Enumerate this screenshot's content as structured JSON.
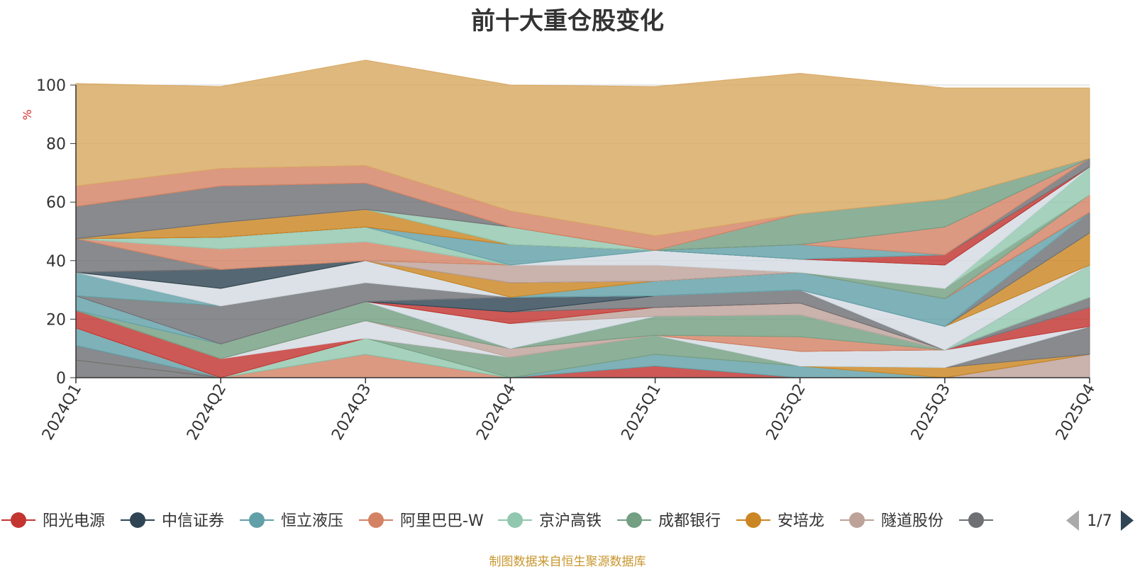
{
  "chart_data": {
    "type": "area",
    "title": "前十大重仓股变化",
    "ylabel": "%",
    "ylim": [
      0,
      100
    ],
    "yticks": [
      0,
      20,
      40,
      60,
      80,
      100
    ],
    "grid": true,
    "categories": [
      "2024Q1",
      "2024Q2",
      "2024Q3",
      "2024Q4",
      "2025Q1",
      "2025Q2",
      "2025Q3",
      "2025Q4"
    ],
    "legend": {
      "placement": "bottom",
      "items": [
        {
          "name": "阳光电源",
          "color": "#c23531"
        },
        {
          "name": "中信证券",
          "color": "#2f4554"
        },
        {
          "name": "恒立液压",
          "color": "#61a0a8"
        },
        {
          "name": "阿里巴巴-W",
          "color": "#d48265"
        },
        {
          "name": "京沪高铁",
          "color": "#91c7ae"
        },
        {
          "name": "成都银行",
          "color": "#749f83"
        },
        {
          "name": "安培龙",
          "color": "#ca8622"
        },
        {
          "name": "隧道股份",
          "color": "#bda29a"
        },
        {
          "name": "",
          "color": "#6e7074"
        }
      ],
      "page": "1/7"
    },
    "series": [
      {
        "color": "#6e7074",
        "values": [
          6,
          0,
          0,
          0,
          0,
          0,
          0,
          0
        ]
      },
      {
        "color": "#ca8622",
        "values": [
          0,
          0,
          0,
          0,
          0,
          0,
          0,
          0
        ]
      },
      {
        "color": "#6e7074",
        "values": [
          5,
          0,
          0,
          0,
          0,
          0,
          0,
          0
        ]
      },
      {
        "color": "#61a0a8",
        "values": [
          6,
          0,
          0,
          0,
          0,
          0,
          0,
          0
        ]
      },
      {
        "color": "#bda29a",
        "values": [
          0,
          0,
          0,
          0,
          0,
          0,
          0,
          8
        ]
      },
      {
        "color": "#d48265",
        "values": [
          0,
          0,
          8,
          0,
          0,
          0,
          0,
          0
        ]
      },
      {
        "color": "#c23531",
        "values": [
          0,
          0,
          0,
          0,
          4,
          0,
          0,
          0
        ]
      },
      {
        "color": "#61a0a8",
        "values": [
          0,
          0,
          0,
          0,
          4,
          4,
          0,
          0
        ]
      },
      {
        "color": "#ca8622",
        "values": [
          0,
          0,
          0,
          0,
          0,
          0,
          3.5,
          0
        ]
      },
      {
        "color": "#6e7074",
        "values": [
          0,
          0,
          0,
          0,
          0,
          0,
          0,
          9.5
        ]
      },
      {
        "color": "#91c7ae",
        "values": [
          0,
          0,
          5.5,
          0,
          0,
          0,
          0,
          0
        ]
      },
      {
        "color": "#749f83",
        "values": [
          0,
          0,
          0,
          7,
          6.5,
          0,
          0,
          0
        ]
      },
      {
        "color": "#d4dbe3",
        "values": [
          0,
          0,
          0,
          0,
          0,
          5,
          6,
          0
        ]
      },
      {
        "color": "#c23531",
        "values": [
          6,
          6.5,
          0,
          0,
          0,
          0,
          0,
          6.5
        ]
      },
      {
        "color": "#d4dbe3",
        "values": [
          0,
          0,
          6,
          0,
          0,
          0,
          0,
          0
        ]
      },
      {
        "color": "#bda29a",
        "values": [
          0,
          0,
          0,
          3,
          0,
          0,
          0,
          0
        ]
      },
      {
        "color": "#6e7074",
        "values": [
          0,
          0,
          0,
          0,
          0,
          0,
          0,
          3.5
        ]
      },
      {
        "color": "#d48265",
        "values": [
          0,
          0,
          0,
          0,
          0,
          5,
          0,
          0
        ]
      },
      {
        "color": "#749f83",
        "values": [
          0,
          5,
          6.5,
          0,
          6.5,
          7.5,
          0,
          0
        ]
      },
      {
        "color": "#61a0a8",
        "values": [
          5,
          0,
          0,
          0,
          0,
          0,
          0,
          0
        ]
      },
      {
        "color": "#d4dbe3",
        "values": [
          0,
          0,
          0,
          8.5,
          0,
          0,
          0,
          0
        ]
      },
      {
        "color": "#bda29a",
        "values": [
          0,
          0,
          0,
          0,
          3,
          4,
          0,
          0
        ]
      },
      {
        "color": "#91c7ae",
        "values": [
          0,
          0,
          0,
          0,
          0,
          0,
          0,
          11
        ]
      },
      {
        "color": "#c23531",
        "values": [
          0,
          0,
          0,
          4,
          0,
          0,
          0,
          0
        ]
      },
      {
        "color": "#6e7074",
        "values": [
          0,
          0,
          0,
          0,
          4,
          4.5,
          0,
          0
        ]
      },
      {
        "color": "#2f4554",
        "values": [
          0,
          0,
          0,
          5,
          0,
          0,
          0,
          0
        ]
      },
      {
        "color": "#d4dbe3",
        "values": [
          0,
          0,
          0,
          0,
          0,
          0,
          8,
          0
        ]
      },
      {
        "color": "#6e7074",
        "values": [
          0,
          13,
          6.5,
          0,
          0,
          0,
          0,
          0
        ]
      },
      {
        "color": "#ca8622",
        "values": [
          0,
          0,
          0,
          0,
          0,
          0,
          0,
          11
        ]
      },
      {
        "color": "#61a0a8",
        "values": [
          8,
          0,
          0,
          0,
          0,
          0,
          0,
          0
        ]
      },
      {
        "color": "#6e7074",
        "values": [
          0,
          0,
          0,
          0,
          0,
          0,
          0,
          7
        ]
      },
      {
        "color": "#d4dbe3",
        "values": [
          0,
          6,
          7.5,
          0,
          0,
          0,
          0,
          0
        ]
      },
      {
        "color": "#61a0a8",
        "values": [
          0,
          0,
          0,
          0,
          5,
          6,
          9.5,
          0
        ]
      },
      {
        "color": "#ca8622",
        "values": [
          0,
          0,
          0,
          5,
          0,
          0,
          0,
          0
        ]
      },
      {
        "color": "#2f4554",
        "values": [
          0,
          6.5,
          0,
          0,
          0,
          0,
          0,
          0
        ]
      },
      {
        "color": "#d48265",
        "values": [
          0,
          0,
          0,
          0,
          0,
          0,
          0,
          6
        ]
      },
      {
        "color": "#6e7074",
        "values": [
          11.5,
          0,
          0,
          0,
          0,
          0,
          0,
          0
        ]
      },
      {
        "color": "#bda29a",
        "values": [
          0,
          0,
          0,
          6,
          5.5,
          0,
          0,
          0
        ]
      },
      {
        "color": "#749f83",
        "values": [
          0,
          0,
          0,
          0,
          0,
          0,
          3.5,
          0
        ]
      },
      {
        "color": "#d48265",
        "values": [
          0,
          7,
          6.5,
          0,
          0,
          0,
          0,
          0
        ]
      },
      {
        "color": "#91c7ae",
        "values": [
          0,
          0,
          0,
          0,
          0,
          0,
          0,
          9.5
        ]
      },
      {
        "color": "#d4dbe3",
        "values": [
          0,
          0,
          0,
          0,
          5,
          4.5,
          8,
          0
        ]
      },
      {
        "color": "#91c7ae",
        "values": [
          0,
          4,
          5,
          0,
          0,
          0,
          0,
          0
        ]
      },
      {
        "color": "#61a0a8",
        "values": [
          0,
          0,
          0,
          7,
          0,
          0,
          0,
          0
        ]
      },
      {
        "color": "#c23531",
        "values": [
          0,
          0,
          0,
          0,
          0,
          0,
          3.5,
          0
        ]
      },
      {
        "color": "#ca8622",
        "values": [
          0,
          5,
          6,
          0,
          0,
          0,
          0,
          0
        ]
      },
      {
        "color": "#6e7074",
        "values": [
          0,
          0,
          0,
          0,
          0,
          0,
          0,
          3
        ]
      },
      {
        "color": "#91c7ae",
        "values": [
          0,
          0,
          0,
          6,
          0,
          0,
          0,
          0
        ]
      },
      {
        "color": "#61a0a8",
        "values": [
          0,
          0,
          0,
          0,
          0,
          5,
          0,
          0
        ]
      },
      {
        "color": "#d48265",
        "values": [
          0,
          0,
          0,
          0,
          0,
          0,
          9.5,
          0
        ]
      },
      {
        "color": "#6e7074",
        "values": [
          11,
          12.5,
          9,
          0,
          0,
          0,
          0,
          0
        ]
      },
      {
        "color": "#749f83",
        "values": [
          0,
          0,
          0,
          0,
          0,
          10.5,
          9.5,
          0
        ]
      },
      {
        "color": "#d48265",
        "values": [
          0,
          0,
          0,
          0,
          0,
          0,
          0,
          0
        ]
      },
      {
        "color": "#d48265",
        "values": [
          7,
          6,
          6,
          5.5,
          5,
          0,
          0,
          0
        ]
      },
      {
        "color": "#d8a862",
        "values": [
          35,
          28,
          36,
          43,
          51,
          48,
          38,
          24
        ]
      }
    ]
  },
  "footer": "制图数据来自恒生聚源数据库"
}
